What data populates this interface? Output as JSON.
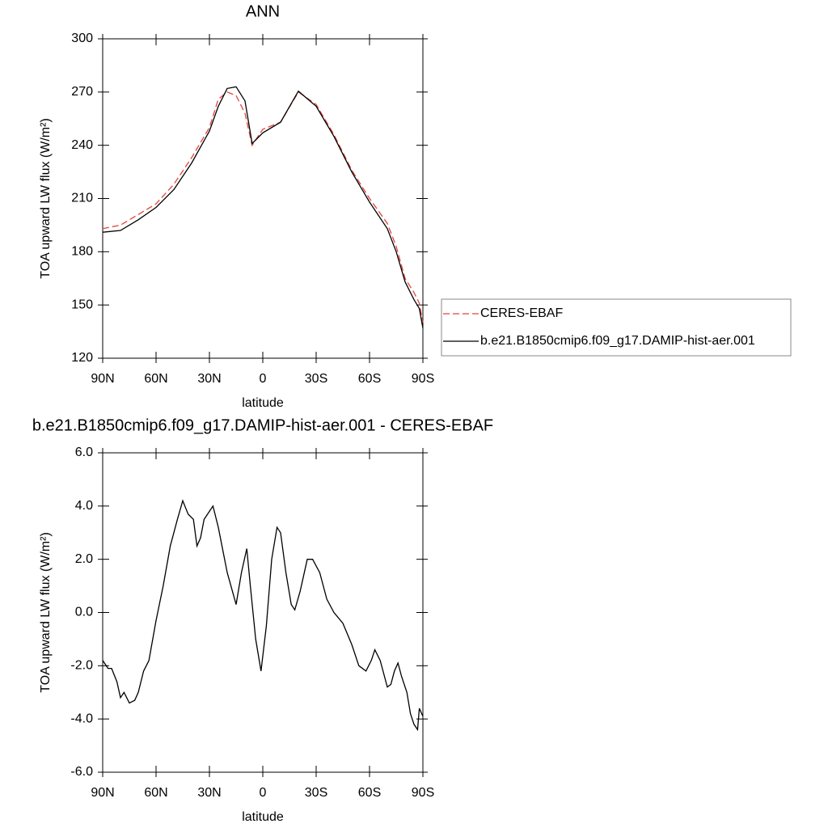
{
  "chart_data": [
    {
      "type": "line",
      "title": "ANN",
      "xlabel": "latitude",
      "ylabel": "TOA upward LW flux (W/m²)",
      "x": [
        90,
        80,
        70,
        60,
        50,
        40,
        30,
        25,
        20,
        15,
        10,
        6,
        0,
        -10,
        -20,
        -30,
        -40,
        -50,
        -60,
        -70,
        -75,
        -80,
        -85,
        -88,
        -90
      ],
      "series": [
        {
          "name": "CERES-EBAF",
          "color": "#e8413b",
          "dashed": true,
          "values": [
            193,
            195,
            201,
            207,
            218,
            233,
            250,
            266,
            270,
            268,
            258,
            240,
            249,
            253,
            270,
            263,
            246,
            226,
            210,
            196,
            183,
            165,
            157,
            151,
            140
          ]
        },
        {
          "name": "b.e21.B1850cmip6.f09_g17.DAMIP-hist-aer.001",
          "color": "#000000",
          "dashed": false,
          "values": [
            191,
            192,
            198,
            205,
            215,
            230,
            248,
            262,
            272,
            273,
            265,
            241,
            247,
            253,
            270.5,
            262,
            245,
            225,
            208,
            193,
            180,
            163,
            153,
            148,
            137
          ]
        }
      ],
      "xlim": [
        90,
        -90
      ],
      "xticks": [
        {
          "value": 90,
          "label": "90N"
        },
        {
          "value": 60,
          "label": "60N"
        },
        {
          "value": 30,
          "label": "30N"
        },
        0,
        {
          "value": -30,
          "label": "30S"
        },
        {
          "value": -60,
          "label": "60S"
        },
        {
          "value": -90,
          "label": "90S"
        }
      ],
      "ylim": [
        120,
        300
      ],
      "yticks": [
        120,
        150,
        180,
        210,
        240,
        270,
        300
      ],
      "legend": "right"
    },
    {
      "type": "line",
      "title": "b.e21.B1850cmip6.f09_g17.DAMIP-hist-aer.001 - CERES-EBAF",
      "xlabel": "latitude",
      "ylabel": "TOA upward LW flux (W/m²)",
      "x": [
        90,
        87,
        85,
        82,
        80,
        78,
        75,
        72,
        70,
        67,
        64,
        60,
        56,
        52,
        48,
        45,
        42,
        39,
        37,
        35,
        33,
        30,
        28,
        25,
        20,
        15,
        12,
        9,
        7,
        4,
        1,
        -2,
        -5,
        -8,
        -10,
        -13,
        -16,
        -18,
        -21,
        -25,
        -28,
        -32,
        -36,
        -40,
        -45,
        -50,
        -54,
        -58,
        -61,
        -63,
        -66,
        -70,
        -72,
        -74,
        -76,
        -78,
        -81,
        -83,
        -85,
        -87,
        -88,
        -90
      ],
      "series": [
        {
          "color": "#000000",
          "dashed": false,
          "values": [
            -1.8,
            -2.1,
            -2.1,
            -2.6,
            -3.2,
            -3.0,
            -3.4,
            -3.3,
            -3.0,
            -2.2,
            -1.8,
            -0.3,
            1.0,
            2.5,
            3.5,
            4.2,
            3.7,
            3.5,
            2.5,
            2.8,
            3.5,
            3.8,
            4.0,
            3.2,
            1.5,
            0.3,
            1.5,
            2.4,
            1.0,
            -1.0,
            -2.2,
            -0.5,
            2.0,
            3.2,
            3.0,
            1.5,
            0.3,
            0.1,
            0.8,
            2.0,
            2.0,
            1.5,
            0.5,
            0.0,
            -0.4,
            -1.2,
            -2.0,
            -2.2,
            -1.8,
            -1.4,
            -1.8,
            -2.8,
            -2.7,
            -2.2,
            -1.9,
            -2.4,
            -3.0,
            -3.8,
            -4.2,
            -4.4,
            -3.6,
            -3.9
          ]
        }
      ],
      "xlim": [
        90,
        -90
      ],
      "xticks": [
        {
          "value": 90,
          "label": "90N"
        },
        {
          "value": 60,
          "label": "60N"
        },
        {
          "value": 30,
          "label": "30N"
        },
        0,
        {
          "value": -30,
          "label": "30S"
        },
        {
          "value": -60,
          "label": "60S"
        },
        {
          "value": -90,
          "label": "90S"
        }
      ],
      "ylim": [
        -6,
        6
      ],
      "yticks": [
        {
          "value": -6,
          "label": "-6.0"
        },
        {
          "value": -4,
          "label": "-4.0"
        },
        {
          "value": -2,
          "label": "-2.0"
        },
        {
          "value": 0,
          "label": "0.0"
        },
        {
          "value": 2,
          "label": "2.0"
        },
        {
          "value": 4,
          "label": "4.0"
        },
        {
          "value": 6,
          "label": "6.0"
        }
      ]
    }
  ]
}
